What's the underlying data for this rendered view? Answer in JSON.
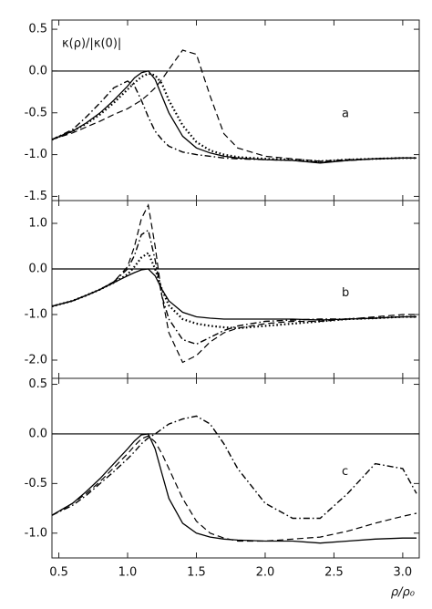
{
  "chart_data": [
    {
      "type": "line",
      "y_label": "κ(ρ)/|κ(0)|",
      "annotation": "a",
      "reference_line": 0,
      "xlim": [
        0.45,
        3.12
      ],
      "xticks": [
        0.5,
        {
          "value": 1,
          "label": "1.0"
        },
        1.5,
        {
          "value": 2,
          "label": "2.0"
        },
        2.5,
        {
          "value": 3,
          "label": "3.0"
        }
      ],
      "ylim": [
        -1.55,
        0.61
      ],
      "yticks": [
        0.5,
        {
          "value": 0,
          "label": "0.0"
        },
        -0.5,
        {
          "value": -1,
          "label": "-1.0"
        },
        -1.5
      ],
      "x": [
        0.45,
        0.6,
        0.7,
        0.8,
        0.9,
        1.0,
        1.05,
        1.1,
        1.15,
        1.2,
        1.25,
        1.3,
        1.4,
        1.5,
        1.6,
        1.7,
        1.8,
        2.0,
        2.2,
        2.4,
        2.6,
        2.8,
        3.0,
        3.1
      ],
      "series": [
        {
          "color": "#000000",
          "dash": "solid",
          "values": [
            -0.82,
            -0.72,
            -0.62,
            -0.5,
            -0.35,
            -0.18,
            -0.08,
            -0.02,
            0.0,
            -0.1,
            -0.3,
            -0.5,
            -0.78,
            -0.92,
            -0.98,
            -1.02,
            -1.04,
            -1.06,
            -1.07,
            -1.1,
            -1.07,
            -1.05,
            -1.04,
            -1.04
          ]
        },
        {
          "color": "#000000",
          "dash": "dashed",
          "values": [
            -0.82,
            -0.74,
            -0.67,
            -0.6,
            -0.52,
            -0.45,
            -0.4,
            -0.35,
            -0.28,
            -0.2,
            -0.1,
            0.02,
            0.25,
            0.2,
            -0.3,
            -0.75,
            -0.92,
            -1.02,
            -1.05,
            -1.08,
            -1.06,
            -1.05,
            -1.04,
            -1.04
          ]
        },
        {
          "color": "#000000",
          "dash": "dotted",
          "values": [
            -0.82,
            -0.72,
            -0.63,
            -0.52,
            -0.38,
            -0.22,
            -0.14,
            -0.07,
            -0.03,
            -0.05,
            -0.15,
            -0.35,
            -0.65,
            -0.85,
            -0.95,
            -1.0,
            -1.03,
            -1.05,
            -1.06,
            -1.08,
            -1.06,
            -1.05,
            -1.04,
            -1.04
          ]
        },
        {
          "color": "#000000",
          "dash": "dashdot",
          "values": [
            -0.82,
            -0.7,
            -0.55,
            -0.38,
            -0.2,
            -0.12,
            -0.18,
            -0.35,
            -0.55,
            -0.72,
            -0.82,
            -0.9,
            -0.97,
            -1.0,
            -1.02,
            -1.04,
            -1.05,
            -1.06,
            -1.07,
            -1.09,
            -1.07,
            -1.05,
            -1.04,
            -1.04
          ]
        }
      ]
    },
    {
      "type": "line",
      "annotation": "b",
      "reference_line": 0,
      "xlim": [
        0.45,
        3.12
      ],
      "xticks": [
        0.5,
        {
          "value": 1,
          "label": "1.0"
        },
        1.5,
        {
          "value": 2,
          "label": "2.0"
        },
        2.5,
        {
          "value": 3,
          "label": "3.0"
        }
      ],
      "ylim": [
        -2.4,
        1.5
      ],
      "yticks": [
        {
          "value": 1,
          "label": "1.0"
        },
        {
          "value": 0,
          "label": "0.0"
        },
        {
          "value": -1,
          "label": "-1.0"
        },
        {
          "value": -2,
          "label": "-2.0"
        }
      ],
      "x": [
        0.45,
        0.6,
        0.7,
        0.8,
        0.9,
        1.0,
        1.05,
        1.1,
        1.15,
        1.2,
        1.25,
        1.3,
        1.4,
        1.5,
        1.6,
        1.7,
        1.8,
        2.0,
        2.2,
        2.4,
        2.6,
        2.8,
        3.0,
        3.1
      ],
      "series": [
        {
          "color": "#000000",
          "dash": "solid",
          "values": [
            -0.82,
            -0.7,
            -0.58,
            -0.45,
            -0.3,
            -0.15,
            -0.08,
            -0.02,
            0.0,
            -0.15,
            -0.45,
            -0.7,
            -0.95,
            -1.05,
            -1.08,
            -1.1,
            -1.1,
            -1.1,
            -1.1,
            -1.12,
            -1.1,
            -1.08,
            -1.05,
            -1.05
          ]
        },
        {
          "color": "#000000",
          "dash": "dashed",
          "values": [
            -0.82,
            -0.7,
            -0.58,
            -0.45,
            -0.28,
            0.05,
            0.5,
            1.1,
            1.4,
            0.5,
            -0.6,
            -1.4,
            -2.05,
            -1.9,
            -1.6,
            -1.4,
            -1.3,
            -1.2,
            -1.15,
            -1.15,
            -1.1,
            -1.05,
            -1.0,
            -1.0
          ]
        },
        {
          "color": "#000000",
          "dash": "dotted",
          "values": [
            -0.82,
            -0.7,
            -0.58,
            -0.45,
            -0.3,
            -0.12,
            0.05,
            0.25,
            0.35,
            0.0,
            -0.45,
            -0.8,
            -1.1,
            -1.2,
            -1.25,
            -1.28,
            -1.3,
            -1.25,
            -1.2,
            -1.15,
            -1.1,
            -1.08,
            -1.05,
            -1.05
          ]
        },
        {
          "color": "#000000",
          "dash": "dashdot",
          "values": [
            -0.82,
            -0.7,
            -0.58,
            -0.45,
            -0.28,
            0.0,
            0.3,
            0.75,
            0.85,
            0.2,
            -0.6,
            -1.1,
            -1.55,
            -1.65,
            -1.5,
            -1.35,
            -1.25,
            -1.15,
            -1.12,
            -1.1,
            -1.1,
            -1.08,
            -1.05,
            -1.05
          ]
        }
      ]
    },
    {
      "type": "line",
      "annotation": "c",
      "reference_line": 0,
      "x_label": "ρ/ρ₀",
      "xlim": [
        0.45,
        3.12
      ],
      "xticks": [
        0.5,
        {
          "value": 1,
          "label": "1.0"
        },
        1.5,
        {
          "value": 2,
          "label": "2.0"
        },
        2.5,
        {
          "value": 3,
          "label": "3.0"
        }
      ],
      "ylim": [
        -1.25,
        0.56
      ],
      "yticks": [
        0.5,
        {
          "value": 0,
          "label": "0.0"
        },
        -0.5,
        {
          "value": -1,
          "label": "-1.0"
        }
      ],
      "x": [
        0.45,
        0.6,
        0.7,
        0.8,
        0.9,
        1.0,
        1.05,
        1.1,
        1.15,
        1.2,
        1.25,
        1.3,
        1.4,
        1.5,
        1.6,
        1.7,
        1.8,
        2.0,
        2.2,
        2.4,
        2.6,
        2.8,
        3.0,
        3.1
      ],
      "series": [
        {
          "color": "#000000",
          "dash": "solid",
          "values": [
            -0.82,
            -0.7,
            -0.58,
            -0.45,
            -0.3,
            -0.15,
            -0.07,
            -0.01,
            0.0,
            -0.15,
            -0.4,
            -0.65,
            -0.9,
            -1.0,
            -1.04,
            -1.06,
            -1.07,
            -1.08,
            -1.08,
            -1.1,
            -1.08,
            -1.06,
            -1.05,
            -1.05
          ]
        },
        {
          "color": "#000000",
          "dash": "dashed",
          "values": [
            -0.82,
            -0.7,
            -0.6,
            -0.48,
            -0.34,
            -0.2,
            -0.12,
            -0.05,
            -0.02,
            -0.08,
            -0.2,
            -0.35,
            -0.65,
            -0.88,
            -1.0,
            -1.05,
            -1.08,
            -1.08,
            -1.06,
            -1.04,
            -0.98,
            -0.9,
            -0.83,
            -0.8
          ]
        },
        {
          "color": "#000000",
          "dash": "dashdot",
          "values": [
            -0.82,
            -0.72,
            -0.62,
            -0.5,
            -0.38,
            -0.25,
            -0.18,
            -0.1,
            -0.04,
            0.0,
            0.05,
            0.1,
            0.15,
            0.18,
            0.1,
            -0.1,
            -0.35,
            -0.7,
            -0.85,
            -0.85,
            -0.6,
            -0.3,
            -0.35,
            -0.6
          ]
        }
      ]
    }
  ]
}
